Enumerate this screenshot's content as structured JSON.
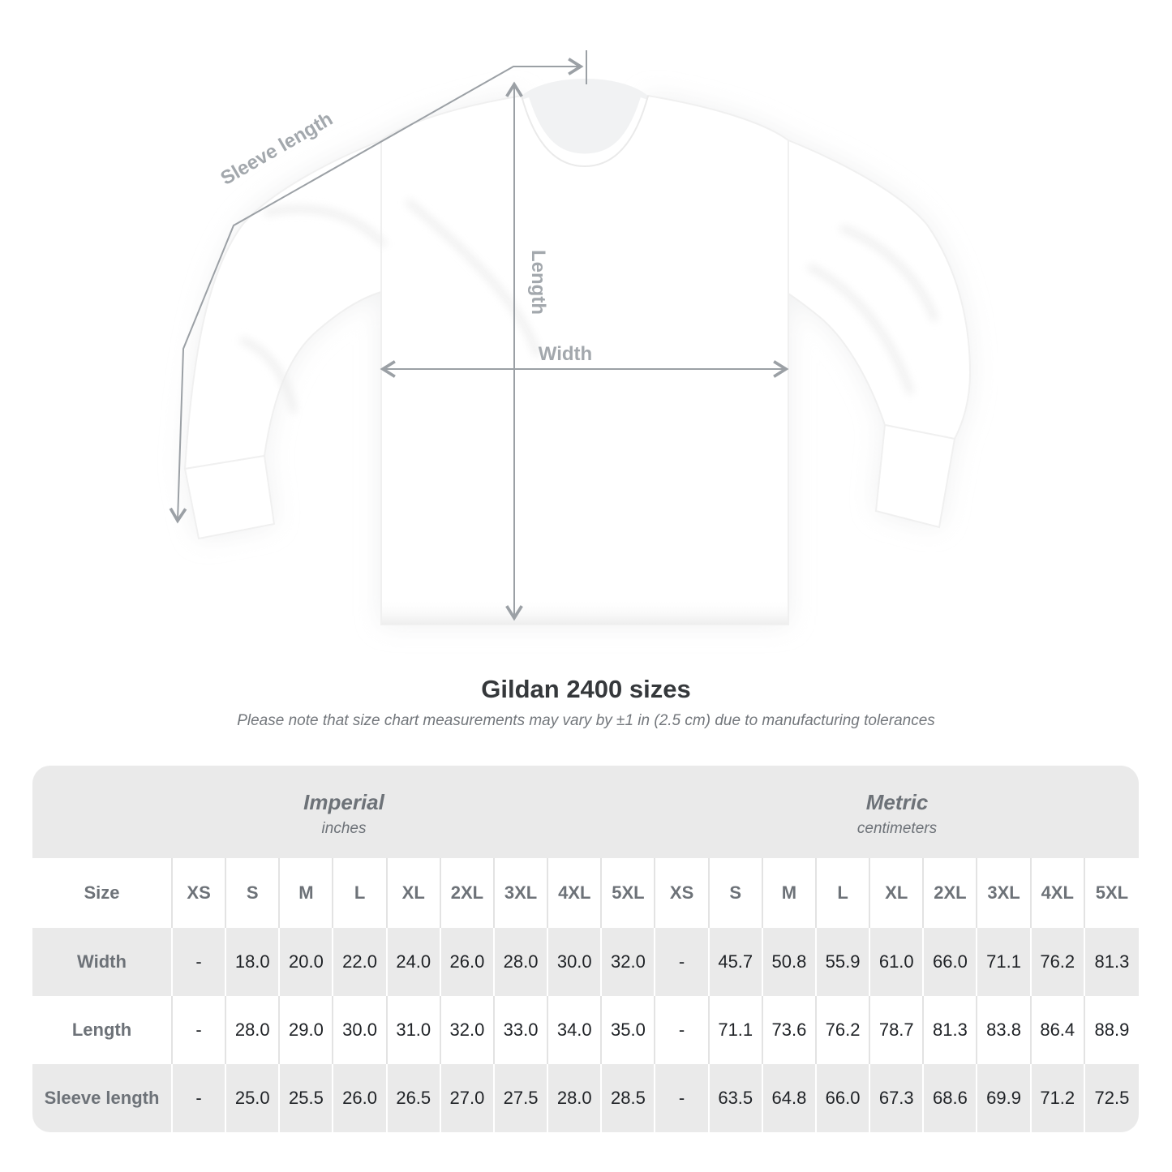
{
  "title": "Gildan 2400 sizes",
  "subtitle": "Please note that size chart measurements may vary by ±1 in (2.5 cm) due to manufacturing tolerances",
  "diagram": {
    "labels": {
      "sleeve_length": "Sleeve length",
      "length": "Length",
      "width": "Width"
    },
    "colors": {
      "annotation_line": "#9ba0a5",
      "annotation_label": "#a3a8ad"
    }
  },
  "table": {
    "size_header": "Size",
    "sizes": [
      "XS",
      "S",
      "M",
      "L",
      "XL",
      "2XL",
      "3XL",
      "4XL",
      "5XL"
    ],
    "unit_groups": [
      {
        "name": "Imperial",
        "unit": "inches"
      },
      {
        "name": "Metric",
        "unit": "centimeters"
      }
    ],
    "rows": [
      {
        "label": "Width",
        "imperial": [
          "-",
          "18.0",
          "20.0",
          "22.0",
          "24.0",
          "26.0",
          "28.0",
          "30.0",
          "32.0"
        ],
        "metric": [
          "-",
          "45.7",
          "50.8",
          "55.9",
          "61.0",
          "66.0",
          "71.1",
          "76.2",
          "81.3"
        ]
      },
      {
        "label": "Length",
        "imperial": [
          "-",
          "28.0",
          "29.0",
          "30.0",
          "31.0",
          "32.0",
          "33.0",
          "34.0",
          "35.0"
        ],
        "metric": [
          "-",
          "71.1",
          "73.6",
          "76.2",
          "78.7",
          "81.3",
          "83.8",
          "86.4",
          "88.9"
        ]
      },
      {
        "label": "Sleeve length",
        "imperial": [
          "-",
          "25.0",
          "25.5",
          "26.0",
          "26.5",
          "27.0",
          "27.5",
          "28.0",
          "28.5"
        ],
        "metric": [
          "-",
          "63.5",
          "64.8",
          "66.0",
          "67.3",
          "68.6",
          "69.9",
          "71.2",
          "72.5"
        ]
      }
    ],
    "colors": {
      "banner_bg": "#eaeaea",
      "stripe_bg": "#eaeaea",
      "header_text": "#6d7278",
      "value_text": "#1f2226"
    }
  }
}
